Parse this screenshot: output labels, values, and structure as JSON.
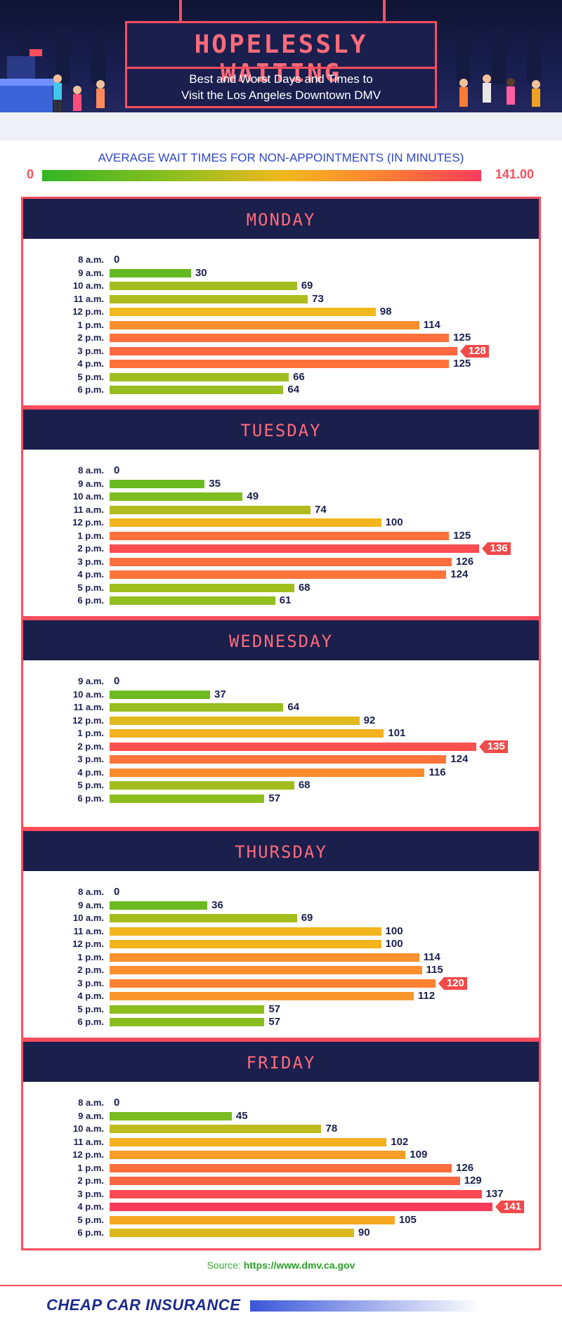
{
  "header": {
    "title": "HOPELESSLY WAITING",
    "subtitle_line1": "Best and Worst Days and Times to",
    "subtitle_line2": "Visit the Los Angeles Downtown DMV"
  },
  "legend": {
    "title": "AVERAGE WAIT TIMES FOR NON-APPOINTMENTS (IN MINUTES)",
    "min_label": "0",
    "max_label": "141.00"
  },
  "colors": {
    "low": "#33b524",
    "mid": "#f2b81d",
    "high": "#ff3b5c",
    "accent": "#ff4d5e",
    "navy": "#1b1f4c"
  },
  "chart_data": {
    "type": "bar",
    "orientation": "horizontal",
    "xlim": [
      0,
      141
    ],
    "days": [
      {
        "name": "MONDAY",
        "categories": [
          "8 a.m.",
          "9 a.m.",
          "10 a.m.",
          "11 a.m.",
          "12 p.m.",
          "1 p.m.",
          "2 p.m.",
          "3 p.m.",
          "4 p.m.",
          "5 p.m.",
          "6 p.m."
        ],
        "values": [
          0,
          30,
          69,
          73,
          98,
          114,
          125,
          128,
          125,
          66,
          64
        ],
        "peak_index": 7
      },
      {
        "name": "TUESDAY",
        "categories": [
          "8 a.m.",
          "9 a.m.",
          "10 a.m.",
          "11 a.m.",
          "12 p.m.",
          "1 p.m.",
          "2 p.m.",
          "3 p.m.",
          "4 p.m.",
          "5 p.m.",
          "6 p.m."
        ],
        "values": [
          0,
          35,
          49,
          74,
          100,
          125,
          136,
          126,
          124,
          68,
          61
        ],
        "peak_index": 6
      },
      {
        "name": "WEDNESDAY",
        "categories": [
          "9 a.m.",
          "10 a.m.",
          "11 a.m.",
          "12 p.m.",
          "1 p.m.",
          "2 p.m.",
          "3 p.m.",
          "4 p.m.",
          "5 p.m.",
          "6 p.m."
        ],
        "values": [
          0,
          37,
          64,
          92,
          101,
          135,
          124,
          116,
          68,
          57
        ],
        "peak_index": 5
      },
      {
        "name": "THURSDAY",
        "categories": [
          "8 a.m.",
          "9 a.m.",
          "10 a.m.",
          "11 a.m.",
          "12 p.m.",
          "1 p.m.",
          "2 p.m.",
          "3 p.m.",
          "4 p.m.",
          "5 p.m.",
          "6 p.m."
        ],
        "values": [
          0,
          36,
          69,
          100,
          100,
          114,
          115,
          120,
          112,
          57,
          57
        ],
        "peak_index": 7
      },
      {
        "name": "FRIDAY",
        "categories": [
          "8 a.m.",
          "9 a.m.",
          "10 a.m.",
          "11 a.m.",
          "12 p.m.",
          "1 p.m.",
          "2 p.m.",
          "3 p.m.",
          "4 p.m.",
          "5 p.m.",
          "6 p.m."
        ],
        "values": [
          0,
          45,
          78,
          102,
          109,
          126,
          129,
          137,
          141,
          105,
          90
        ],
        "peak_index": 8
      }
    ]
  },
  "source": {
    "label": "Source:",
    "url": "https://www.dmv.ca.gov"
  },
  "brand": {
    "name": "CHEAP CAR INSURANCE"
  }
}
